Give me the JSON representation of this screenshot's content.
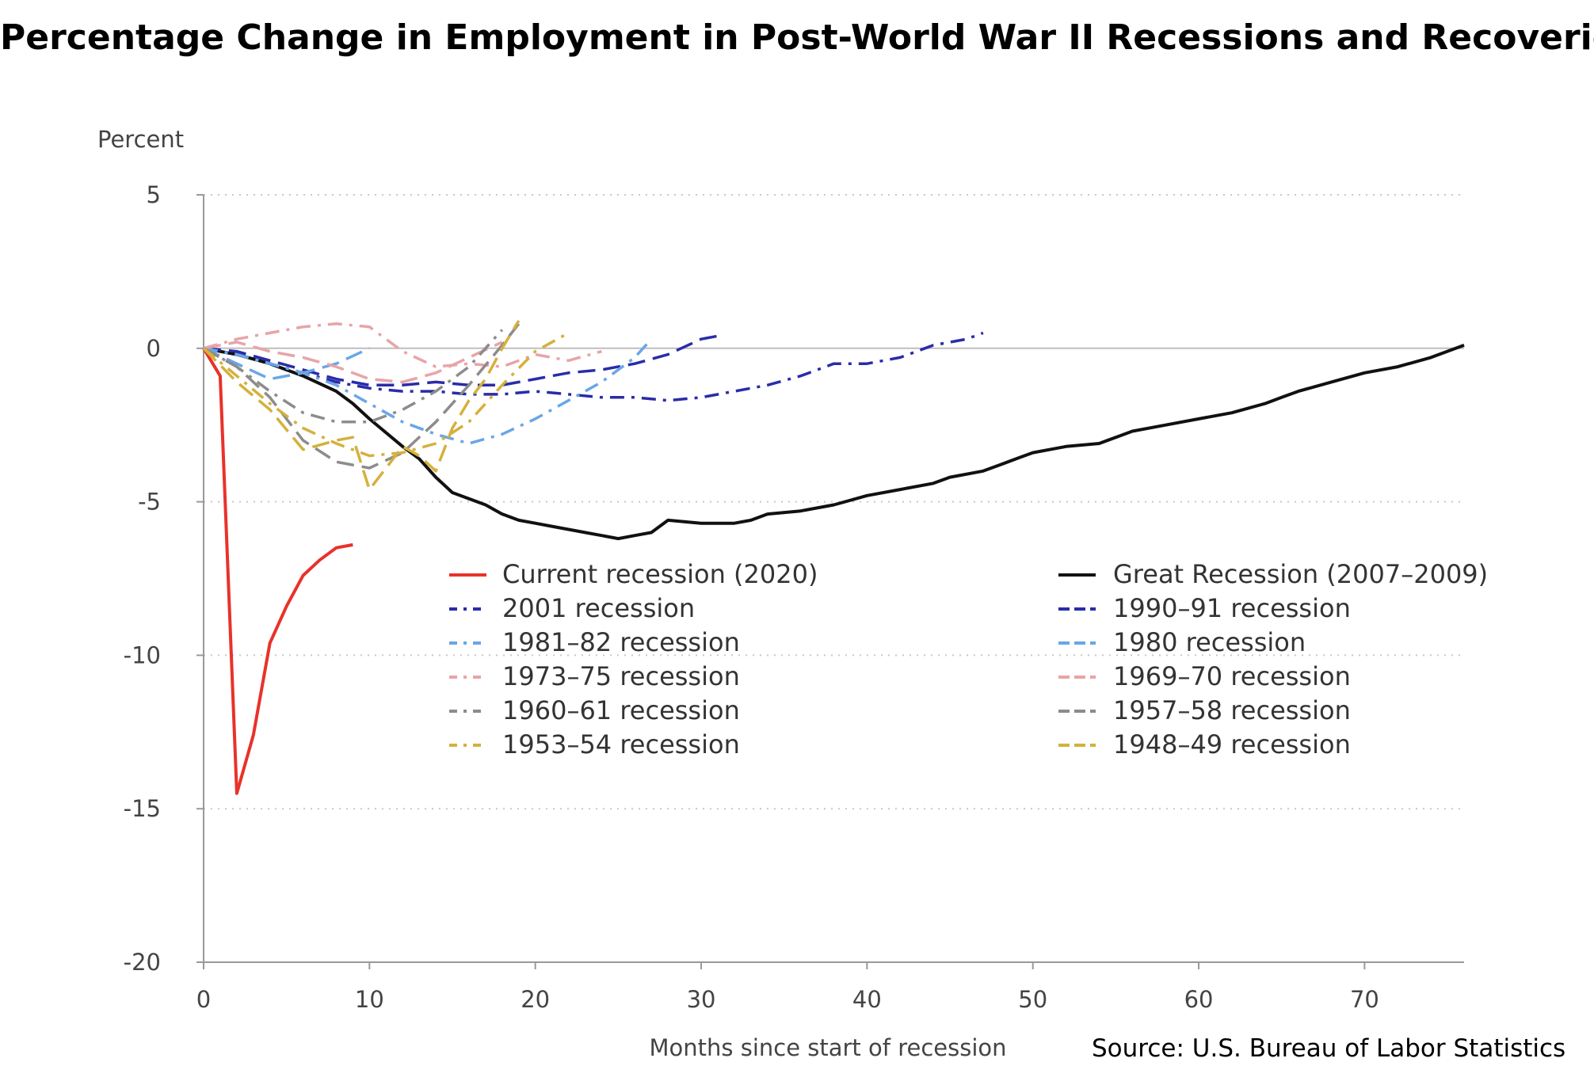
{
  "title": "Percentage Change in Employment in Post-World War II Recessions and Recoveries",
  "source": "Source: U.S. Bureau of Labor Statistics",
  "chart_data": {
    "type": "line",
    "ylabel": "Percent",
    "xlabel": "Months since start of recession",
    "xlim": [
      0,
      76
    ],
    "ylim": [
      -20,
      5
    ],
    "x_ticks": [
      "0",
      "10",
      "20",
      "30",
      "40",
      "50",
      "60",
      "70"
    ],
    "y_ticks": [
      "5",
      "0",
      "-5",
      "-10",
      "-15",
      "-20"
    ],
    "grid": "horizontal dotted",
    "legend_placement": "center",
    "series": [
      {
        "name": "Current recession (2020)",
        "color": "#e8322a",
        "dash": "solid",
        "x": [
          0,
          1,
          2,
          3,
          4,
          5,
          6,
          7,
          8,
          9
        ],
        "y": [
          0,
          -0.9,
          -14.5,
          -12.6,
          -9.6,
          -8.4,
          -7.4,
          -6.9,
          -6.5,
          -6.4
        ]
      },
      {
        "name": "Great Recession (2007–2009)",
        "color": "#111111",
        "dash": "solid",
        "x": [
          0,
          2,
          4,
          6,
          8,
          9,
          10,
          12,
          13,
          14,
          15,
          17,
          18,
          19,
          20,
          21,
          22,
          23,
          24,
          25,
          26,
          27,
          28,
          30,
          32,
          33,
          34,
          36,
          38,
          40,
          42,
          44,
          45,
          47,
          48,
          49,
          50,
          52,
          54,
          55,
          56,
          58,
          60,
          62,
          64,
          65,
          66,
          68,
          70,
          72,
          74,
          76
        ],
        "y": [
          0,
          -0.2,
          -0.5,
          -0.9,
          -1.4,
          -1.8,
          -2.3,
          -3.2,
          -3.6,
          -4.2,
          -4.7,
          -5.1,
          -5.4,
          -5.6,
          -5.7,
          -5.8,
          -5.9,
          -6.0,
          -6.1,
          -6.2,
          -6.1,
          -6.0,
          -5.6,
          -5.7,
          -5.7,
          -5.6,
          -5.4,
          -5.3,
          -5.1,
          -4.8,
          -4.6,
          -4.4,
          -4.2,
          -4.0,
          -3.8,
          -3.6,
          -3.4,
          -3.2,
          -3.1,
          -2.9,
          -2.7,
          -2.5,
          -2.3,
          -2.1,
          -1.8,
          -1.6,
          -1.4,
          -1.1,
          -0.8,
          -0.6,
          -0.3,
          0.1
        ]
      },
      {
        "name": "2001 recession",
        "color": "#2a2ca8",
        "dash": "dashdot",
        "x": [
          0,
          2,
          4,
          6,
          8,
          10,
          12,
          14,
          16,
          18,
          20,
          22,
          24,
          26,
          28,
          30,
          32,
          34,
          36,
          38,
          40,
          42,
          44,
          46,
          47
        ],
        "y": [
          0,
          -0.2,
          -0.5,
          -0.8,
          -1.1,
          -1.3,
          -1.4,
          -1.4,
          -1.5,
          -1.5,
          -1.4,
          -1.5,
          -1.6,
          -1.6,
          -1.7,
          -1.6,
          -1.4,
          -1.2,
          -0.9,
          -0.5,
          -0.5,
          -0.3,
          0.1,
          0.3,
          0.5
        ]
      },
      {
        "name": "1990–91 recession",
        "color": "#2a2ca8",
        "dash": "long",
        "x": [
          0,
          2,
          4,
          6,
          8,
          10,
          12,
          14,
          16,
          18,
          20,
          22,
          24,
          26,
          28,
          30,
          31
        ],
        "y": [
          0,
          -0.1,
          -0.4,
          -0.7,
          -1.0,
          -1.2,
          -1.2,
          -1.1,
          -1.2,
          -1.2,
          -1.0,
          -0.8,
          -0.7,
          -0.5,
          -0.2,
          0.3,
          0.4
        ]
      },
      {
        "name": "1981–82 recession",
        "color": "#6aa6e6",
        "dash": "dashdot",
        "x": [
          0,
          2,
          4,
          6,
          8,
          10,
          12,
          14,
          16,
          18,
          20,
          22,
          24,
          26,
          27
        ],
        "y": [
          0,
          -0.2,
          -0.5,
          -0.8,
          -1.2,
          -1.8,
          -2.4,
          -2.8,
          -3.1,
          -2.8,
          -2.3,
          -1.7,
          -1.1,
          -0.3,
          0.3
        ]
      },
      {
        "name": "1980 recession",
        "color": "#6aa6e6",
        "dash": "long",
        "x": [
          0,
          2,
          4,
          6,
          8,
          10
        ],
        "y": [
          0,
          -0.5,
          -1.0,
          -0.8,
          -0.5,
          0.0
        ]
      },
      {
        "name": "1973–75 recession",
        "color": "#e8a4a8",
        "dash": "dashdot",
        "x": [
          0,
          2,
          4,
          6,
          8,
          10,
          12,
          14,
          16,
          18,
          20,
          22,
          24
        ],
        "y": [
          0,
          0.3,
          0.5,
          0.7,
          0.8,
          0.7,
          -0.1,
          -0.6,
          -0.5,
          -0.6,
          -0.2,
          -0.4,
          -0.1
        ]
      },
      {
        "name": "1969–70 recession",
        "color": "#e8a4a8",
        "dash": "long",
        "x": [
          0,
          2,
          4,
          6,
          8,
          10,
          12,
          14,
          16,
          18
        ],
        "y": [
          0,
          0.2,
          -0.1,
          -0.3,
          -0.6,
          -1.0,
          -1.1,
          -0.8,
          -0.3,
          0.2
        ]
      },
      {
        "name": "1960–61 recession",
        "color": "#8c8c8c",
        "dash": "dashdot",
        "x": [
          0,
          2,
          4,
          6,
          8,
          10,
          12,
          14,
          16,
          18
        ],
        "y": [
          0,
          -0.6,
          -1.4,
          -2.1,
          -2.4,
          -2.4,
          -2.0,
          -1.4,
          -0.6,
          0.6
        ]
      },
      {
        "name": "1957–58 recession",
        "color": "#8c8c8c",
        "dash": "long",
        "x": [
          0,
          2,
          4,
          6,
          8,
          10,
          12,
          14,
          16,
          18,
          19
        ],
        "y": [
          0,
          -0.6,
          -1.6,
          -3.0,
          -3.7,
          -3.9,
          -3.4,
          -2.4,
          -1.2,
          0.1,
          0.8
        ]
      },
      {
        "name": "1953–54 recession",
        "color": "#d4b13c",
        "dash": "dashdot",
        "x": [
          0,
          2,
          4,
          6,
          8,
          10,
          12,
          14,
          16,
          18,
          20,
          22
        ],
        "y": [
          0,
          -0.9,
          -1.8,
          -2.6,
          -3.1,
          -3.5,
          -3.4,
          -3.1,
          -2.4,
          -1.2,
          -0.1,
          0.5
        ]
      },
      {
        "name": "1948–49 recession",
        "color": "#d4b13c",
        "dash": "long",
        "x": [
          0,
          2,
          4,
          6,
          8,
          9,
          10,
          11,
          12,
          13,
          14,
          15,
          16,
          17,
          18,
          19
        ],
        "y": [
          0,
          -1.1,
          -2.0,
          -3.3,
          -3.0,
          -2.9,
          -4.6,
          -3.9,
          -3.2,
          -3.5,
          -4.0,
          -2.6,
          -1.7,
          -1.0,
          0.0,
          0.9
        ]
      }
    ]
  }
}
